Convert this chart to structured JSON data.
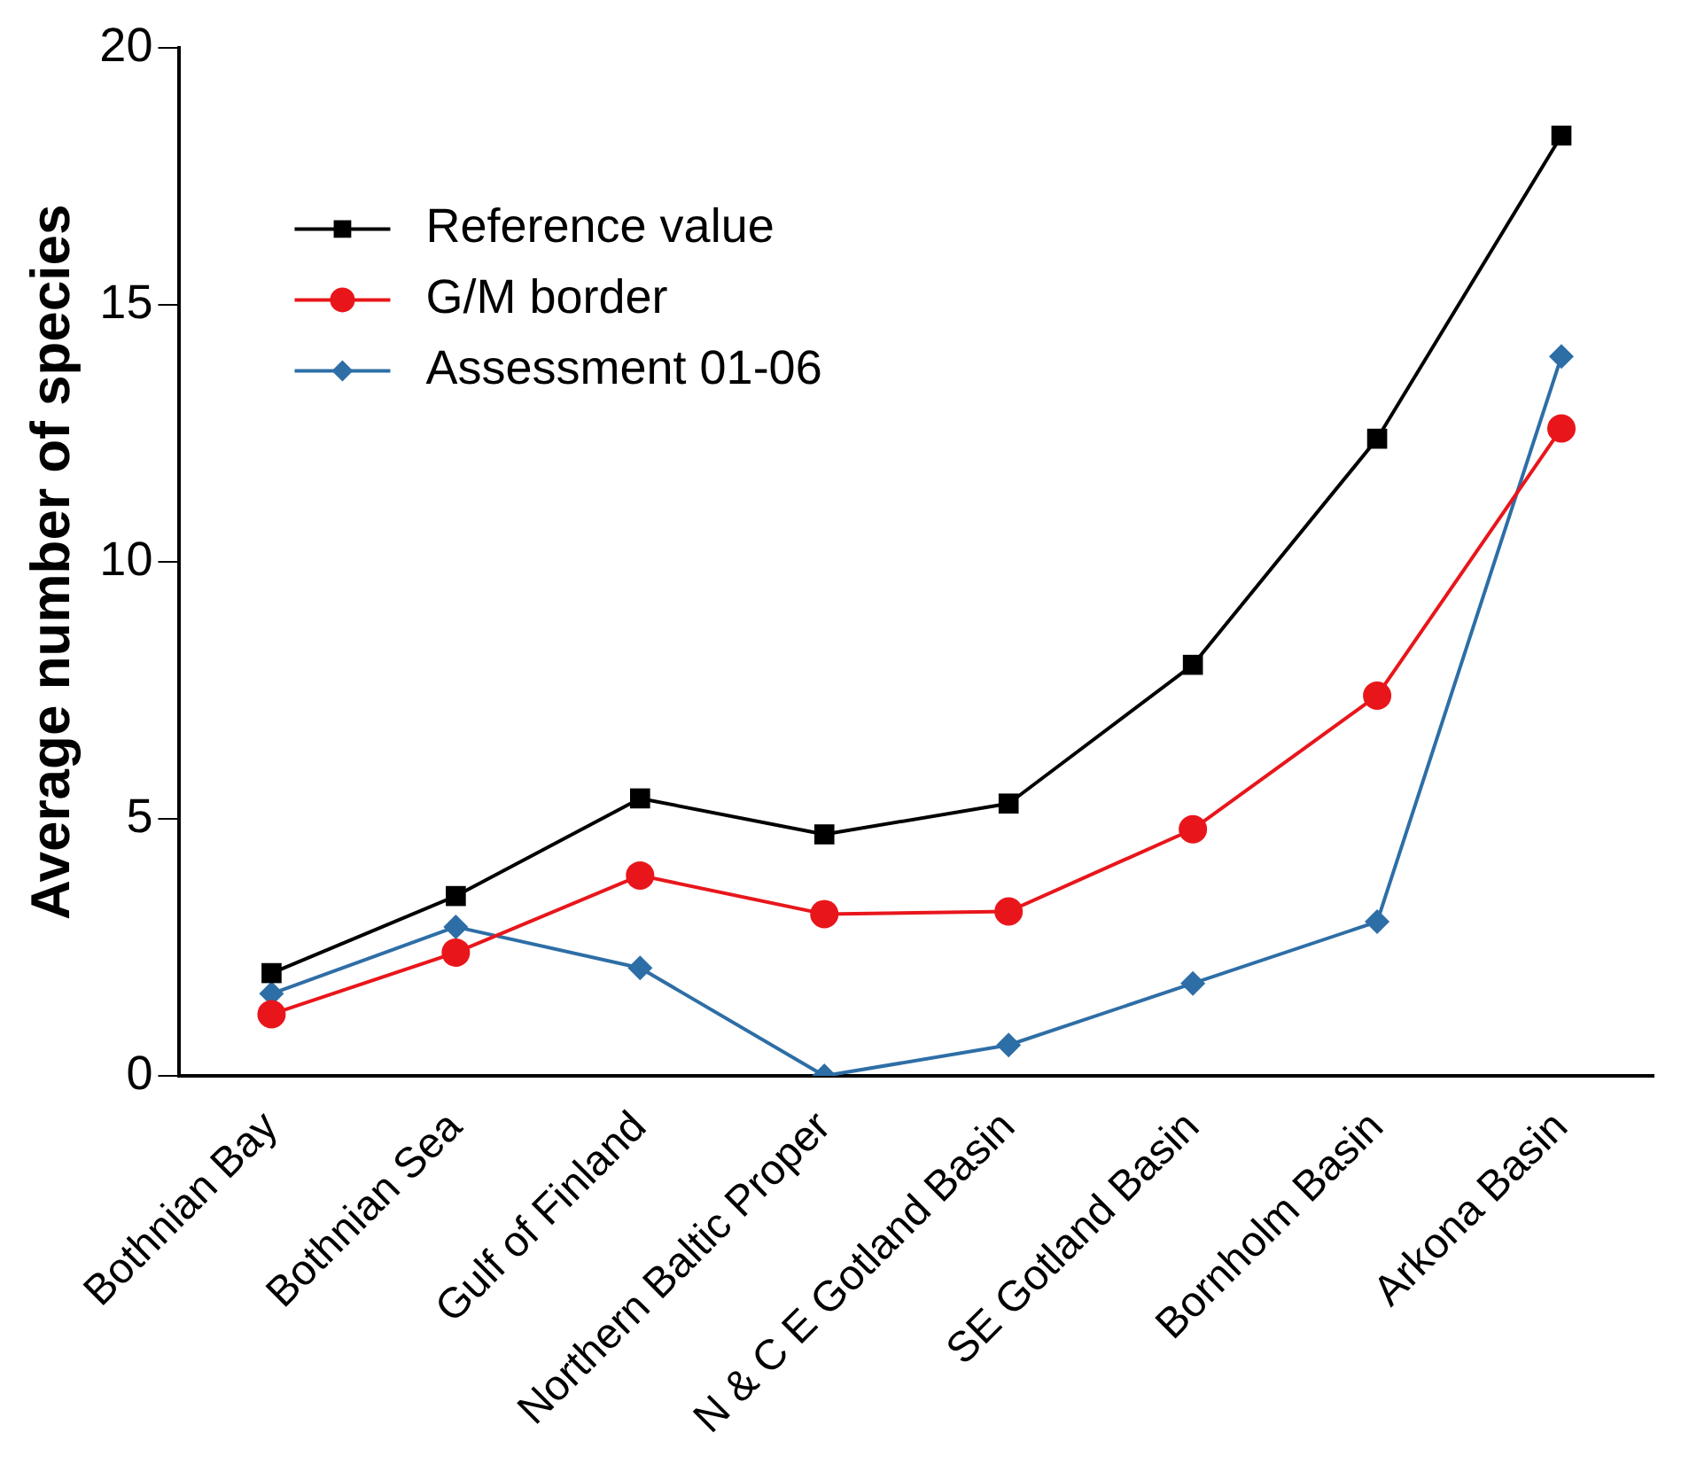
{
  "chart_data": {
    "type": "line",
    "ylabel": "Average number of species",
    "categories": [
      "Bothnian Bay",
      "Bothnian Sea",
      "Gulf of Finland",
      "Northern Baltic Proper",
      "N & C E Gotland Basin",
      "SE Gotland Basin",
      "Bornholm Basin",
      "Arkona Basin"
    ],
    "series": [
      {
        "name": "Reference value",
        "color": "#000000",
        "marker": "square",
        "values": [
          2.0,
          3.5,
          5.4,
          4.7,
          5.3,
          8.0,
          12.4,
          18.3
        ]
      },
      {
        "name": "G/M border",
        "color": "#e8161b",
        "marker": "circle",
        "values": [
          1.2,
          2.4,
          3.9,
          3.15,
          3.2,
          4.8,
          7.4,
          12.6
        ]
      },
      {
        "name": "Assessment 01-06",
        "color": "#2e6ea6",
        "marker": "diamond",
        "values": [
          1.6,
          2.9,
          2.1,
          0,
          0.6,
          1.8,
          3.0,
          14.0
        ]
      }
    ],
    "ylim": [
      0,
      20
    ],
    "yticks": [
      0,
      5,
      10,
      15,
      20
    ],
    "grid": false,
    "legend": "top left",
    "line_style": "solid"
  }
}
